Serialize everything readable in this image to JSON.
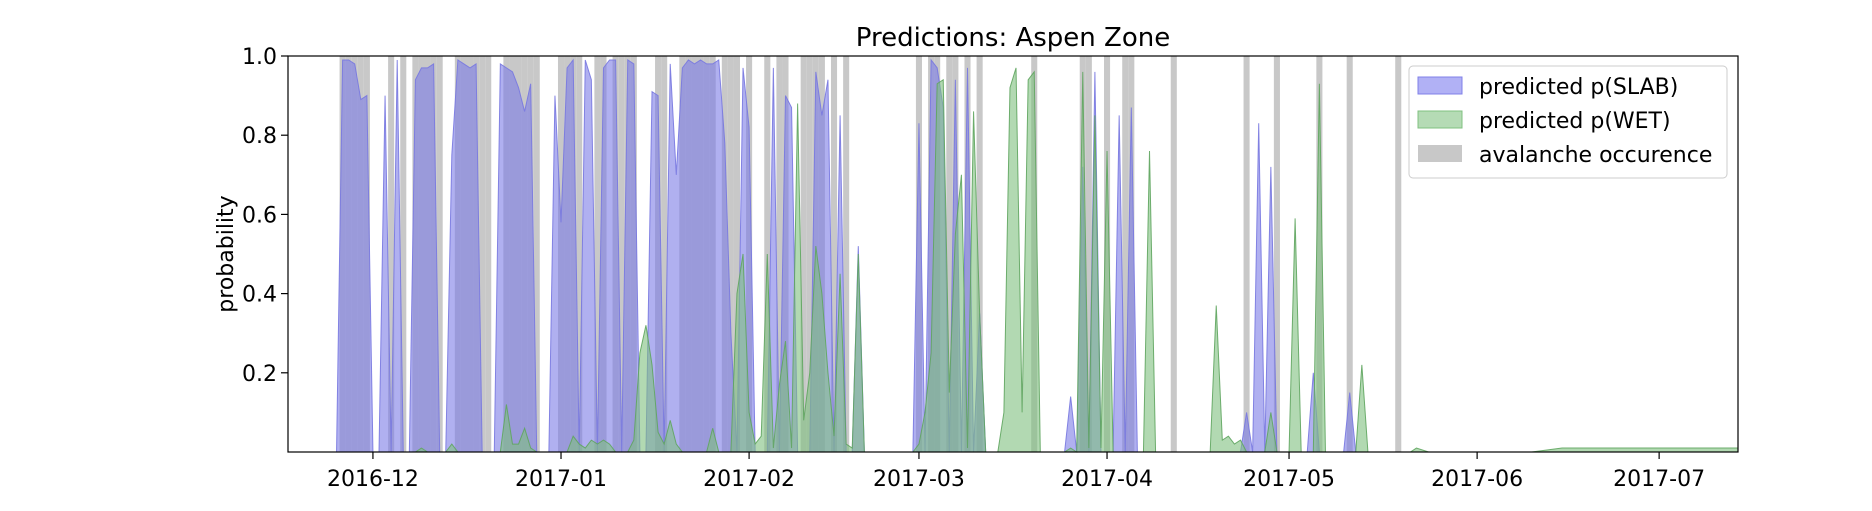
{
  "chart_data": {
    "type": "area",
    "title": "Predictions: Aspen Zone",
    "xlabel": "",
    "ylabel": "probability",
    "x_range": [
      "2016-11-17",
      "2017-07-14"
    ],
    "ylim": [
      0,
      1.0
    ],
    "y_ticks": [
      0.2,
      0.4,
      0.6,
      0.8,
      1.0
    ],
    "y_tick_labels": [
      "0.2",
      "0.4",
      "0.6",
      "0.8",
      "1.0"
    ],
    "x_ticks": [
      "2016-12-01",
      "2017-01-01",
      "2017-02-01",
      "2017-03-01",
      "2017-04-01",
      "2017-05-01",
      "2017-06-01",
      "2017-07-01"
    ],
    "x_tick_labels": [
      "2016-12",
      "2017-01",
      "2017-02",
      "2017-03",
      "2017-04",
      "2017-05",
      "2017-06",
      "2017-07"
    ],
    "legend_position": "top-right",
    "grid": false,
    "legend": [
      {
        "label": "predicted p(SLAB)",
        "color": "#7b7be6"
      },
      {
        "label": "predicted p(WET)",
        "color": "#7fc07f"
      },
      {
        "label": "avalanche occurence",
        "color": "#c8c8c8"
      }
    ],
    "avalanche_occurrences": [
      "2016-11-26",
      "2016-11-27",
      "2016-11-28",
      "2016-11-29",
      "2016-11-30",
      "2016-12-04",
      "2016-12-06",
      "2016-12-08",
      "2016-12-09",
      "2016-12-10",
      "2016-12-11",
      "2016-12-12",
      "2016-12-15",
      "2016-12-16",
      "2016-12-17",
      "2016-12-18",
      "2016-12-19",
      "2016-12-20",
      "2016-12-23",
      "2016-12-24",
      "2016-12-25",
      "2016-12-26",
      "2016-12-27",
      "2016-12-28",
      "2017-01-01",
      "2017-01-02",
      "2017-01-03",
      "2017-01-04",
      "2017-01-07",
      "2017-01-08",
      "2017-01-10",
      "2017-01-11",
      "2017-01-12",
      "2017-01-13",
      "2017-01-17",
      "2017-01-18",
      "2017-01-21",
      "2017-01-22",
      "2017-01-23",
      "2017-01-24",
      "2017-01-25",
      "2017-01-26",
      "2017-01-28",
      "2017-01-29",
      "2017-01-30",
      "2017-02-01",
      "2017-02-04",
      "2017-02-06",
      "2017-02-07",
      "2017-02-10",
      "2017-02-11",
      "2017-02-12",
      "2017-02-13",
      "2017-02-15",
      "2017-02-17",
      "2017-03-01",
      "2017-03-03",
      "2017-03-04",
      "2017-03-06",
      "2017-03-07",
      "2017-03-09",
      "2017-03-11",
      "2017-03-20",
      "2017-03-28",
      "2017-03-29",
      "2017-04-01",
      "2017-04-04",
      "2017-04-05",
      "2017-04-12",
      "2017-04-24",
      "2017-04-29",
      "2017-05-06",
      "2017-05-11",
      "2017-05-19"
    ],
    "series": [
      {
        "name": "predicted p(SLAB)",
        "points": [
          [
            "2016-11-17",
            0
          ],
          [
            "2016-11-25",
            0
          ],
          [
            "2016-11-26",
            0.99
          ],
          [
            "2016-11-27",
            0.99
          ],
          [
            "2016-11-28",
            0.98
          ],
          [
            "2016-11-29",
            0.89
          ],
          [
            "2016-11-30",
            0.9
          ],
          [
            "2016-12-01",
            0
          ],
          [
            "2016-12-02",
            0
          ],
          [
            "2016-12-03",
            0.9
          ],
          [
            "2016-12-04",
            0
          ],
          [
            "2016-12-05",
            0.99
          ],
          [
            "2016-12-06",
            0
          ],
          [
            "2016-12-07",
            0
          ],
          [
            "2016-12-08",
            0.94
          ],
          [
            "2016-12-09",
            0.97
          ],
          [
            "2016-12-10",
            0.97
          ],
          [
            "2016-12-11",
            0.98
          ],
          [
            "2016-12-12",
            0
          ],
          [
            "2016-12-13",
            0
          ],
          [
            "2016-12-14",
            0.75
          ],
          [
            "2016-12-15",
            0.99
          ],
          [
            "2016-12-16",
            0.98
          ],
          [
            "2016-12-17",
            0.97
          ],
          [
            "2016-12-18",
            0.98
          ],
          [
            "2016-12-19",
            0
          ],
          [
            "2016-12-21",
            0
          ],
          [
            "2016-12-22",
            0.98
          ],
          [
            "2016-12-23",
            0.97
          ],
          [
            "2016-12-24",
            0.96
          ],
          [
            "2016-12-25",
            0.92
          ],
          [
            "2016-12-26",
            0.86
          ],
          [
            "2016-12-27",
            0.93
          ],
          [
            "2016-12-28",
            0
          ],
          [
            "2016-12-30",
            0
          ],
          [
            "2016-12-31",
            0.9
          ],
          [
            "2017-01-01",
            0.58
          ],
          [
            "2017-01-02",
            0.97
          ],
          [
            "2017-01-03",
            0.99
          ],
          [
            "2017-01-04",
            0
          ],
          [
            "2017-01-05",
            0.99
          ],
          [
            "2017-01-06",
            0.94
          ],
          [
            "2017-01-07",
            0
          ],
          [
            "2017-01-08",
            0.97
          ],
          [
            "2017-01-09",
            0.99
          ],
          [
            "2017-01-10",
            0.99
          ],
          [
            "2017-01-11",
            0
          ],
          [
            "2017-01-12",
            0.99
          ],
          [
            "2017-01-13",
            0.98
          ],
          [
            "2017-01-14",
            0
          ],
          [
            "2017-01-15",
            0
          ],
          [
            "2017-01-16",
            0.91
          ],
          [
            "2017-01-17",
            0.9
          ],
          [
            "2017-01-18",
            0
          ],
          [
            "2017-01-19",
            0.98
          ],
          [
            "2017-01-20",
            0.7
          ],
          [
            "2017-01-21",
            0.97
          ],
          [
            "2017-01-22",
            0.99
          ],
          [
            "2017-01-23",
            0.98
          ],
          [
            "2017-01-24",
            0.99
          ],
          [
            "2017-01-25",
            0.98
          ],
          [
            "2017-01-26",
            0.98
          ],
          [
            "2017-01-27",
            0.99
          ],
          [
            "2017-01-28",
            0.78
          ],
          [
            "2017-01-29",
            0.3
          ],
          [
            "2017-01-30",
            0
          ],
          [
            "2017-01-31",
            0.97
          ],
          [
            "2017-02-01",
            0.82
          ],
          [
            "2017-02-02",
            0
          ],
          [
            "2017-02-04",
            0
          ],
          [
            "2017-02-05",
            0.97
          ],
          [
            "2017-02-06",
            0
          ],
          [
            "2017-02-07",
            0.9
          ],
          [
            "2017-02-08",
            0.87
          ],
          [
            "2017-02-09",
            0
          ],
          [
            "2017-02-11",
            0
          ],
          [
            "2017-02-12",
            0.96
          ],
          [
            "2017-02-13",
            0.85
          ],
          [
            "2017-02-14",
            0.94
          ],
          [
            "2017-02-15",
            0
          ],
          [
            "2017-02-16",
            0.85
          ],
          [
            "2017-02-17",
            0
          ],
          [
            "2017-02-18",
            0
          ],
          [
            "2017-02-19",
            0.52
          ],
          [
            "2017-02-20",
            0
          ],
          [
            "2017-02-28",
            0
          ],
          [
            "2017-03-01",
            0.83
          ],
          [
            "2017-03-02",
            0
          ],
          [
            "2017-03-03",
            0.99
          ],
          [
            "2017-03-04",
            0.97
          ],
          [
            "2017-03-05",
            0.87
          ],
          [
            "2017-03-06",
            0
          ],
          [
            "2017-03-07",
            0.94
          ],
          [
            "2017-03-08",
            0
          ],
          [
            "2017-03-09",
            0.97
          ],
          [
            "2017-03-10",
            0
          ],
          [
            "2017-03-11",
            0.35
          ],
          [
            "2017-03-12",
            0
          ],
          [
            "2017-03-25",
            0
          ],
          [
            "2017-03-26",
            0.14
          ],
          [
            "2017-03-27",
            0
          ],
          [
            "2017-03-28",
            0.72
          ],
          [
            "2017-03-29",
            0
          ],
          [
            "2017-03-30",
            0.96
          ],
          [
            "2017-03-31",
            0
          ],
          [
            "2017-04-02",
            0
          ],
          [
            "2017-04-03",
            0.85
          ],
          [
            "2017-04-04",
            0
          ],
          [
            "2017-04-05",
            0.87
          ],
          [
            "2017-04-06",
            0
          ],
          [
            "2017-04-23",
            0
          ],
          [
            "2017-04-24",
            0.1
          ],
          [
            "2017-04-25",
            0
          ],
          [
            "2017-04-26",
            0.83
          ],
          [
            "2017-04-27",
            0
          ],
          [
            "2017-04-28",
            0.72
          ],
          [
            "2017-04-29",
            0
          ],
          [
            "2017-05-04",
            0
          ],
          [
            "2017-05-05",
            0.2
          ],
          [
            "2017-05-06",
            0
          ],
          [
            "2017-05-10",
            0
          ],
          [
            "2017-05-11",
            0.15
          ],
          [
            "2017-05-12",
            0
          ],
          [
            "2017-05-19",
            0
          ],
          [
            "2017-07-14",
            0
          ]
        ]
      },
      {
        "name": "predicted p(WET)",
        "points": [
          [
            "2016-11-17",
            0
          ],
          [
            "2016-12-08",
            0
          ],
          [
            "2016-12-09",
            0.01
          ],
          [
            "2016-12-10",
            0
          ],
          [
            "2016-12-13",
            0
          ],
          [
            "2016-12-14",
            0.02
          ],
          [
            "2016-12-15",
            0
          ],
          [
            "2016-12-22",
            0
          ],
          [
            "2016-12-23",
            0.12
          ],
          [
            "2016-12-24",
            0.02
          ],
          [
            "2016-12-25",
            0.02
          ],
          [
            "2016-12-26",
            0.06
          ],
          [
            "2016-12-27",
            0.01
          ],
          [
            "2016-12-28",
            0
          ],
          [
            "2017-01-02",
            0
          ],
          [
            "2017-01-03",
            0.04
          ],
          [
            "2017-01-04",
            0.02
          ],
          [
            "2017-01-05",
            0.01
          ],
          [
            "2017-01-06",
            0.03
          ],
          [
            "2017-01-07",
            0.02
          ],
          [
            "2017-01-08",
            0.03
          ],
          [
            "2017-01-09",
            0.02
          ],
          [
            "2017-01-10",
            0
          ],
          [
            "2017-01-12",
            0
          ],
          [
            "2017-01-13",
            0.03
          ],
          [
            "2017-01-14",
            0.25
          ],
          [
            "2017-01-15",
            0.32
          ],
          [
            "2017-01-16",
            0.22
          ],
          [
            "2017-01-17",
            0.05
          ],
          [
            "2017-01-18",
            0.02
          ],
          [
            "2017-01-19",
            0.08
          ],
          [
            "2017-01-20",
            0.02
          ],
          [
            "2017-01-21",
            0
          ],
          [
            "2017-01-25",
            0
          ],
          [
            "2017-01-26",
            0.06
          ],
          [
            "2017-01-27",
            0
          ],
          [
            "2017-01-29",
            0
          ],
          [
            "2017-01-30",
            0.4
          ],
          [
            "2017-01-31",
            0.5
          ],
          [
            "2017-02-01",
            0.1
          ],
          [
            "2017-02-02",
            0.02
          ],
          [
            "2017-02-03",
            0.04
          ],
          [
            "2017-02-04",
            0.5
          ],
          [
            "2017-02-05",
            0.01
          ],
          [
            "2017-02-06",
            0.17
          ],
          [
            "2017-02-07",
            0.28
          ],
          [
            "2017-02-08",
            0.01
          ],
          [
            "2017-02-09",
            0.88
          ],
          [
            "2017-02-10",
            0.08
          ],
          [
            "2017-02-11",
            0.2
          ],
          [
            "2017-02-12",
            0.52
          ],
          [
            "2017-02-13",
            0.4
          ],
          [
            "2017-02-14",
            0.2
          ],
          [
            "2017-02-15",
            0.04
          ],
          [
            "2017-02-16",
            0.45
          ],
          [
            "2017-02-17",
            0.02
          ],
          [
            "2017-02-18",
            0.01
          ],
          [
            "2017-02-19",
            0.5
          ],
          [
            "2017-02-20",
            0
          ],
          [
            "2017-02-28",
            0
          ],
          [
            "2017-03-01",
            0.02
          ],
          [
            "2017-03-02",
            0.1
          ],
          [
            "2017-03-03",
            0.25
          ],
          [
            "2017-03-04",
            0.93
          ],
          [
            "2017-03-05",
            0.94
          ],
          [
            "2017-03-06",
            0.15
          ],
          [
            "2017-03-07",
            0.55
          ],
          [
            "2017-03-08",
            0.7
          ],
          [
            "2017-03-09",
            0.01
          ],
          [
            "2017-03-10",
            0.86
          ],
          [
            "2017-03-11",
            0.35
          ],
          [
            "2017-03-12",
            0
          ],
          [
            "2017-03-14",
            0
          ],
          [
            "2017-03-15",
            0.1
          ],
          [
            "2017-03-16",
            0.92
          ],
          [
            "2017-03-17",
            0.97
          ],
          [
            "2017-03-18",
            0.1
          ],
          [
            "2017-03-19",
            0.94
          ],
          [
            "2017-03-20",
            0.96
          ],
          [
            "2017-03-21",
            0
          ],
          [
            "2017-03-25",
            0
          ],
          [
            "2017-03-26",
            0.01
          ],
          [
            "2017-03-27",
            0
          ],
          [
            "2017-03-28",
            0.96
          ],
          [
            "2017-03-29",
            0.01
          ],
          [
            "2017-03-30",
            0.85
          ],
          [
            "2017-03-31",
            0.01
          ],
          [
            "2017-04-01",
            0.76
          ],
          [
            "2017-04-02",
            0
          ],
          [
            "2017-04-07",
            0
          ],
          [
            "2017-04-08",
            0.76
          ],
          [
            "2017-04-09",
            0
          ],
          [
            "2017-04-18",
            0
          ],
          [
            "2017-04-19",
            0.37
          ],
          [
            "2017-04-20",
            0.03
          ],
          [
            "2017-04-21",
            0.04
          ],
          [
            "2017-04-22",
            0.02
          ],
          [
            "2017-04-23",
            0.03
          ],
          [
            "2017-04-24",
            0
          ],
          [
            "2017-04-27",
            0
          ],
          [
            "2017-04-28",
            0.1
          ],
          [
            "2017-04-29",
            0
          ],
          [
            "2017-05-01",
            0
          ],
          [
            "2017-05-02",
            0.59
          ],
          [
            "2017-05-03",
            0
          ],
          [
            "2017-05-05",
            0
          ],
          [
            "2017-05-06",
            0.93
          ],
          [
            "2017-05-07",
            0
          ],
          [
            "2017-05-12",
            0
          ],
          [
            "2017-05-13",
            0.22
          ],
          [
            "2017-05-14",
            0
          ],
          [
            "2017-05-21",
            0
          ],
          [
            "2017-05-22",
            0.01
          ],
          [
            "2017-05-24",
            0
          ],
          [
            "2017-06-10",
            0
          ],
          [
            "2017-06-15",
            0.01
          ],
          [
            "2017-07-14",
            0.01
          ]
        ]
      }
    ]
  }
}
